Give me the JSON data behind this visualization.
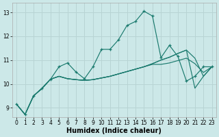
{
  "xlabel": "Humidex (Indice chaleur)",
  "bg_color": "#cce8e8",
  "line_color": "#1a7a6e",
  "grid_color": "#b8d4d4",
  "xlim": [
    -0.5,
    23.5
  ],
  "ylim": [
    8.6,
    13.4
  ],
  "yticks": [
    9,
    10,
    11,
    12,
    13
  ],
  "xticks": [
    0,
    1,
    2,
    3,
    4,
    5,
    6,
    7,
    8,
    9,
    10,
    11,
    12,
    13,
    14,
    15,
    16,
    17,
    18,
    19,
    20,
    21,
    22,
    23
  ],
  "line_main_x": [
    0,
    1,
    2,
    3,
    4,
    5,
    6,
    7,
    8,
    9,
    10,
    11,
    12,
    13,
    14,
    15,
    16,
    17,
    18,
    19,
    20,
    21,
    22,
    23
  ],
  "line_main_y": [
    9.15,
    8.72,
    9.5,
    9.8,
    10.2,
    10.72,
    10.88,
    10.5,
    10.22,
    10.72,
    11.45,
    11.45,
    11.85,
    12.45,
    12.62,
    13.05,
    12.85,
    11.1,
    11.62,
    11.15,
    10.12,
    10.32,
    10.72,
    10.72
  ],
  "line_reg1_x": [
    0,
    1,
    2,
    3,
    4,
    5,
    6,
    7,
    8,
    9,
    10,
    11,
    12,
    13,
    14,
    15,
    16,
    17,
    18,
    19,
    20,
    21,
    22,
    23
  ],
  "line_reg1_y": [
    9.15,
    8.72,
    9.5,
    9.82,
    10.2,
    10.32,
    10.22,
    10.18,
    10.15,
    10.18,
    10.25,
    10.32,
    10.42,
    10.52,
    10.62,
    10.72,
    10.82,
    10.82,
    10.88,
    10.98,
    11.08,
    10.85,
    10.48,
    10.72
  ],
  "line_reg2_x": [
    0,
    1,
    2,
    3,
    4,
    5,
    6,
    7,
    8,
    9,
    10,
    11,
    12,
    13,
    14,
    15,
    16,
    17,
    18,
    19,
    20,
    21,
    22,
    23
  ],
  "line_reg2_y": [
    9.15,
    8.72,
    9.5,
    9.82,
    10.2,
    10.32,
    10.22,
    10.18,
    10.15,
    10.18,
    10.25,
    10.32,
    10.42,
    10.52,
    10.62,
    10.72,
    10.85,
    11.0,
    11.12,
    11.28,
    11.42,
    11.08,
    10.32,
    10.72
  ],
  "line_reg3_x": [
    0,
    1,
    2,
    3,
    4,
    5,
    6,
    7,
    8,
    9,
    10,
    11,
    12,
    13,
    14,
    15,
    16,
    17,
    18,
    19,
    20,
    21,
    22,
    23
  ],
  "line_reg3_y": [
    9.15,
    8.72,
    9.5,
    9.82,
    10.2,
    10.32,
    10.22,
    10.18,
    10.15,
    10.18,
    10.25,
    10.32,
    10.42,
    10.52,
    10.62,
    10.72,
    10.85,
    11.0,
    11.12,
    11.28,
    11.42,
    9.82,
    10.32,
    10.72
  ]
}
